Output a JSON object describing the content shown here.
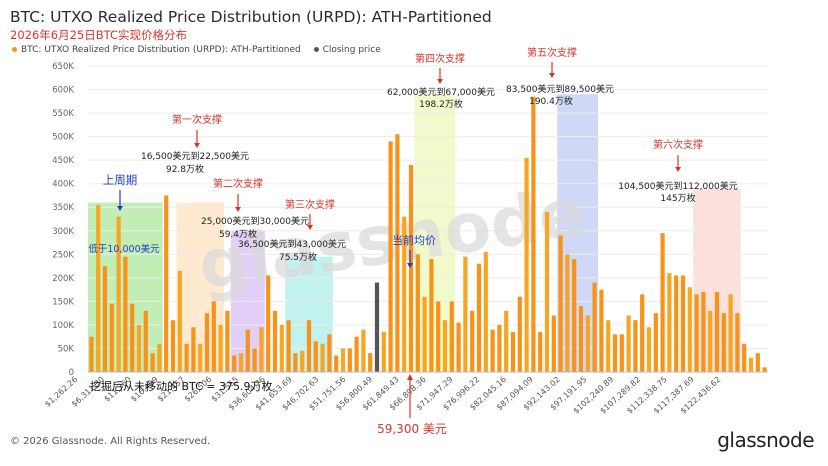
{
  "header": {
    "title": "BTC: UTXO Realized Price Distribution (URPD): ATH-Partitioned",
    "subtitle": "2026年6月25日BTC实现价格分布"
  },
  "legend": [
    {
      "label": "BTC: UTXO Realized Price Distribution (URPD): ATH-Partitioned",
      "color": "#f7931a"
    },
    {
      "label": "Closing price",
      "color": "#555555"
    }
  ],
  "footer": {
    "copyright": "© 2026 Glassnode. All Rights Reserved.",
    "brand": "glassnode",
    "watermark": "glassnode"
  },
  "chart_data": {
    "type": "bar",
    "ylim": [
      0,
      650000
    ],
    "y_ticks": [
      "0",
      "50K",
      "100K",
      "150K",
      "200K",
      "250K",
      "300K",
      "350K",
      "400K",
      "450K",
      "500K",
      "550K",
      "600K",
      "650K"
    ],
    "x_tick_labels": [
      "$1,262.26",
      "$6,311.30",
      "$11,360",
      "$16,409",
      "$21,457",
      "$26,506",
      "$31,555",
      "$36,604.76",
      "$41,653.69",
      "$46,702.63",
      "$51,751.56",
      "$56,800.49",
      "$61,849.43",
      "$66,898.36",
      "$71,947.29",
      "$76,996.22",
      "$82,045.16",
      "$87,094.09",
      "$92,143.02",
      "$97,191.95",
      "$102,240.89",
      "$107,289.82",
      "$112,338.75",
      "$117,387.69",
      "$122,436.62"
    ],
    "values": [
      75000,
      355000,
      225000,
      145000,
      330000,
      245000,
      145000,
      100000,
      130000,
      40000,
      60000,
      375000,
      110000,
      215000,
      60000,
      95000,
      60000,
      125000,
      150000,
      100000,
      130000,
      35000,
      40000,
      90000,
      50000,
      95000,
      205000,
      130000,
      100000,
      110000,
      40000,
      45000,
      110000,
      65000,
      60000,
      80000,
      35000,
      50000,
      50000,
      75000,
      90000,
      40000,
      190000,
      85000,
      490000,
      505000,
      330000,
      440000,
      250000,
      160000,
      240000,
      150000,
      110000,
      150000,
      105000,
      245000,
      130000,
      230000,
      255000,
      90000,
      100000,
      130000,
      85000,
      160000,
      455000,
      585000,
      85000,
      340000,
      120000,
      290000,
      250000,
      240000,
      140000,
      120000,
      190000,
      175000,
      110000,
      80000,
      80000,
      120000,
      110000,
      165000,
      95000,
      125000,
      295000,
      210000,
      205000,
      205000,
      180000,
      165000,
      170000,
      130000,
      170000,
      125000,
      165000,
      125000,
      60000,
      30000,
      40000,
      10000
    ],
    "closing_price": {
      "label": "当前均价",
      "value": 59300,
      "value_label": "59,300 美元"
    },
    "bottom_annotation": "挖掘后从未移动的 BTC = 375.9万枚",
    "zones": [
      {
        "name": "上周期",
        "label": "上周期",
        "sublabel": "低于10,000美元",
        "color": "#8fe07a"
      },
      {
        "name": "第一次支撑",
        "label": "第一次支撑",
        "range": "16,500美元到22,500美元",
        "amount": "92.8万枚",
        "color": "#ffd9a8"
      },
      {
        "name": "第二次支撑",
        "label": "第二次支撑",
        "range": "25,000美元到30,000美元",
        "amount": "59.4万枚",
        "color": "#c8a8f0"
      },
      {
        "name": "第三次支撑",
        "label": "第三次支撑",
        "range": "36,500美元到43,000美元",
        "amount": "75.5万枚",
        "color": "#8ee8e0"
      },
      {
        "name": "第四次支撑",
        "label": "第四次支撑",
        "range": "62,000美元到67,000美元",
        "amount": "198.2万枚",
        "color": "#e4f5a0"
      },
      {
        "name": "第五次支撑",
        "label": "第五次支撑",
        "range": "83,500美元到89,500美元",
        "amount": "190.4万枚",
        "color": "#a9b8f0"
      },
      {
        "name": "第六次支撑",
        "label": "第六次支撑",
        "range": "104,500美元到112,000美元",
        "amount": "145万枚",
        "color": "#f8c6c0"
      }
    ],
    "colors": {
      "bar": "#f7931a",
      "bar_alt": "#f5a623",
      "closing": "#555555",
      "annotation_red": "#d9342b",
      "annotation_blue": "#1f3fc0"
    }
  }
}
